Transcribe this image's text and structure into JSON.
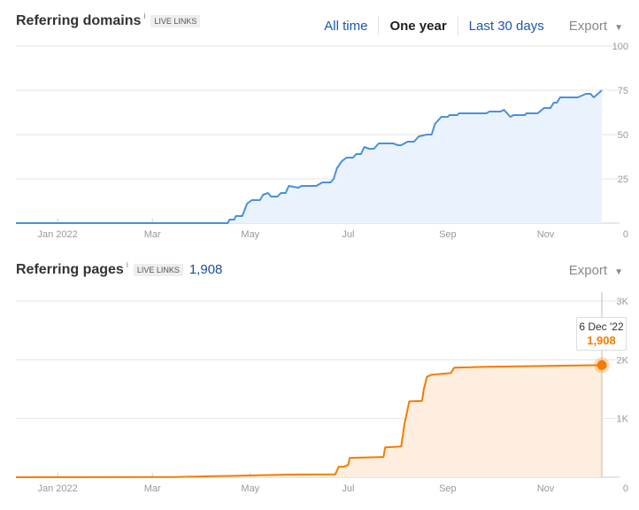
{
  "domains_panel": {
    "title": "Referring domains",
    "info": "i",
    "badge": "LIVE LINKS",
    "ranges": [
      "All time",
      "One year",
      "Last 30 days"
    ],
    "active_range": "One year",
    "export_label": "Export",
    "export_icon": "caret-down-icon"
  },
  "pages_panel": {
    "title": "Referring pages",
    "info": "i",
    "badge": "LIVE LINKS",
    "count": "1,908",
    "export_label": "Export",
    "export_icon": "caret-down-icon",
    "tooltip": {
      "date": "6 Dec '22",
      "value": "1,908"
    }
  },
  "colors": {
    "domains_line": "#4a90d9",
    "domains_fill": "#eaf3fd",
    "pages_line": "#f57c00",
    "pages_fill": "#fdeee0",
    "link": "#1a56b0"
  },
  "chart_data": [
    {
      "type": "area",
      "title": "Referring domains",
      "x_range": [
        "2021-12-06",
        "2022-12-06"
      ],
      "xticks": [
        "Jan 2022",
        "Mar",
        "May",
        "Jul",
        "Sep",
        "Nov"
      ],
      "yticks": [
        "100",
        "75",
        "50",
        "25",
        "0"
      ],
      "ylim": [
        0,
        100
      ],
      "grid": true,
      "series": [
        {
          "points": [
            [
              "2021-12-06",
              0
            ],
            [
              "2022-04-17",
              0
            ],
            [
              "2022-04-18",
              2
            ],
            [
              "2022-04-21",
              2
            ],
            [
              "2022-04-22",
              4
            ],
            [
              "2022-04-26",
              4
            ],
            [
              "2022-04-29",
              11
            ],
            [
              "2022-05-02",
              13
            ],
            [
              "2022-05-07",
              13
            ],
            [
              "2022-05-09",
              16
            ],
            [
              "2022-05-12",
              17
            ],
            [
              "2022-05-14",
              15
            ],
            [
              "2022-05-18",
              15
            ],
            [
              "2022-05-20",
              17
            ],
            [
              "2022-05-23",
              17
            ],
            [
              "2022-05-25",
              21
            ],
            [
              "2022-05-31",
              20
            ],
            [
              "2022-06-02",
              21
            ],
            [
              "2022-06-11",
              21
            ],
            [
              "2022-06-15",
              23
            ],
            [
              "2022-06-20",
              23
            ],
            [
              "2022-06-22",
              25
            ],
            [
              "2022-06-24",
              31
            ],
            [
              "2022-06-27",
              35
            ],
            [
              "2022-06-30",
              37
            ],
            [
              "2022-07-04",
              37
            ],
            [
              "2022-07-06",
              39
            ],
            [
              "2022-07-09",
              39
            ],
            [
              "2022-07-11",
              43
            ],
            [
              "2022-07-14",
              42
            ],
            [
              "2022-07-17",
              42
            ],
            [
              "2022-07-20",
              45
            ],
            [
              "2022-07-29",
              45
            ],
            [
              "2022-08-01",
              44
            ],
            [
              "2022-08-03",
              44
            ],
            [
              "2022-08-07",
              46
            ],
            [
              "2022-08-11",
              46
            ],
            [
              "2022-08-14",
              49
            ],
            [
              "2022-08-19",
              50
            ],
            [
              "2022-08-22",
              50
            ],
            [
              "2022-08-24",
              56
            ],
            [
              "2022-08-28",
              60
            ],
            [
              "2022-09-01",
              60
            ],
            [
              "2022-09-02",
              61
            ],
            [
              "2022-09-07",
              61
            ],
            [
              "2022-09-08",
              62
            ],
            [
              "2022-09-25",
              62
            ],
            [
              "2022-09-27",
              63
            ],
            [
              "2022-10-04",
              63
            ],
            [
              "2022-10-06",
              64
            ],
            [
              "2022-10-10",
              60
            ],
            [
              "2022-10-12",
              61
            ],
            [
              "2022-10-19",
              61
            ],
            [
              "2022-10-20",
              62
            ],
            [
              "2022-10-27",
              62
            ],
            [
              "2022-10-31",
              65
            ],
            [
              "2022-11-04",
              65
            ],
            [
              "2022-11-06",
              68
            ],
            [
              "2022-11-08",
              68
            ],
            [
              "2022-11-10",
              71
            ],
            [
              "2022-11-21",
              71
            ],
            [
              "2022-11-26",
              73
            ],
            [
              "2022-11-29",
              73
            ],
            [
              "2022-12-01",
              71
            ],
            [
              "2022-12-06",
              75
            ]
          ]
        }
      ]
    },
    {
      "type": "area",
      "title": "Referring pages",
      "x_range": [
        "2021-12-06",
        "2022-12-06"
      ],
      "xticks": [
        "Jan 2022",
        "Mar",
        "May",
        "Jul",
        "Sep",
        "Nov"
      ],
      "yticks": [
        "3K",
        "2K",
        "1K",
        "0"
      ],
      "ylim": [
        0,
        3000
      ],
      "grid": true,
      "series": [
        {
          "points": [
            [
              "2021-12-06",
              0
            ],
            [
              "2022-03-15",
              5
            ],
            [
              "2022-05-01",
              30
            ],
            [
              "2022-05-25",
              45
            ],
            [
              "2022-06-23",
              50
            ],
            [
              "2022-06-25",
              180
            ],
            [
              "2022-06-28",
              180
            ],
            [
              "2022-07-01",
              210
            ],
            [
              "2022-07-02",
              330
            ],
            [
              "2022-07-23",
              345
            ],
            [
              "2022-07-24",
              510
            ],
            [
              "2022-08-03",
              525
            ],
            [
              "2022-08-05",
              900
            ],
            [
              "2022-08-08",
              1290
            ],
            [
              "2022-08-16",
              1300
            ],
            [
              "2022-08-17",
              1490
            ],
            [
              "2022-08-19",
              1710
            ],
            [
              "2022-08-22",
              1745
            ],
            [
              "2022-09-03",
              1775
            ],
            [
              "2022-09-05",
              1865
            ],
            [
              "2022-09-25",
              1880
            ],
            [
              "2022-12-06",
              1908
            ]
          ]
        }
      ],
      "highlight": {
        "date": "2022-12-06",
        "value": 1908
      }
    }
  ]
}
